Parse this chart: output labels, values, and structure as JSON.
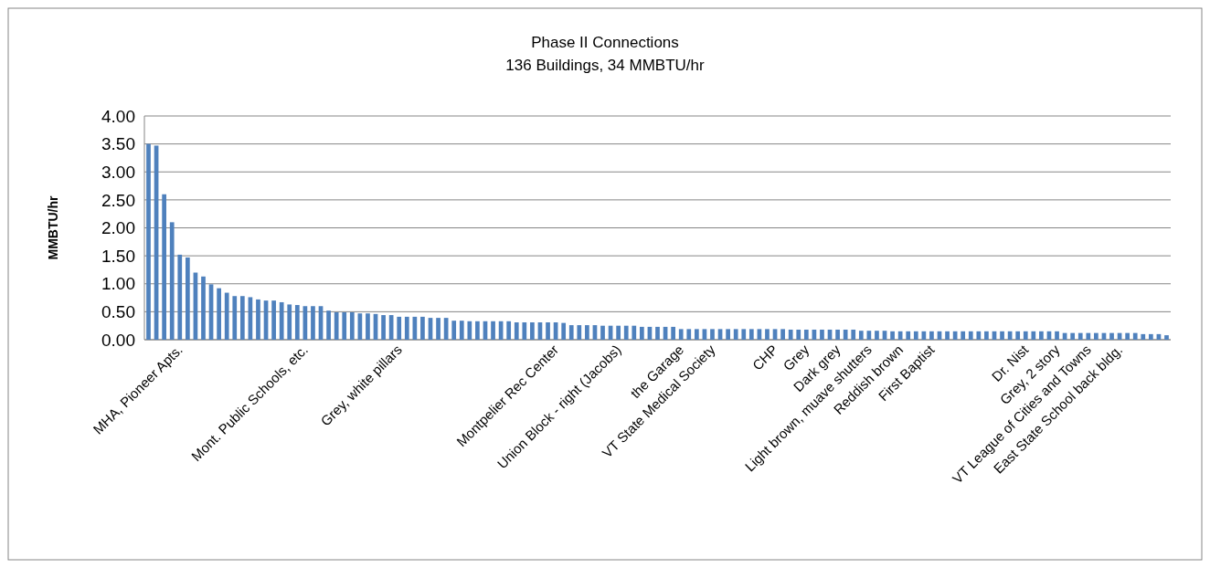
{
  "chart_data": {
    "type": "bar",
    "title": "Phase II Connections\n136 Buildings, 34 MMBTU/hr",
    "ylabel": "MMBTU/hr",
    "categories": [
      null,
      null,
      null,
      null,
      "MHA, Pioneer Apts.",
      null,
      null,
      null,
      null,
      null,
      null,
      null,
      null,
      null,
      null,
      null,
      null,
      null,
      null,
      null,
      "Mont. Public Schools, etc.",
      null,
      null,
      null,
      null,
      null,
      null,
      null,
      null,
      null,
      null,
      null,
      "Grey, white pillars",
      null,
      null,
      null,
      null,
      null,
      null,
      null,
      null,
      null,
      null,
      null,
      null,
      null,
      null,
      null,
      null,
      null,
      null,
      null,
      "Montpelier Rec Center",
      null,
      null,
      null,
      null,
      null,
      null,
      null,
      "Union Block - right (Jacobs)",
      null,
      null,
      null,
      null,
      null,
      null,
      null,
      "the Garage",
      null,
      null,
      null,
      "VT State Medical Society",
      null,
      null,
      null,
      null,
      null,
      null,
      null,
      "CHP",
      null,
      null,
      null,
      "Grey",
      null,
      null,
      null,
      "Dark grey",
      null,
      null,
      null,
      "Light brown, muave shutters",
      null,
      null,
      null,
      "Reddish brown",
      null,
      null,
      null,
      "First Baptist",
      null,
      null,
      null,
      null,
      null,
      null,
      null,
      null,
      null,
      null,
      null,
      "Dr. Nist",
      null,
      null,
      null,
      "Grey, 2 story",
      null,
      null,
      null,
      "VT League of Cities and Towns",
      null,
      null,
      null,
      "East State School back bldg.",
      null,
      null,
      null,
      null,
      null,
      null
    ],
    "values": [
      3.5,
      3.47,
      2.6,
      2.1,
      1.52,
      1.47,
      1.2,
      1.13,
      0.99,
      0.92,
      0.84,
      0.78,
      0.78,
      0.76,
      0.72,
      0.7,
      0.7,
      0.67,
      0.63,
      0.62,
      0.6,
      0.6,
      0.6,
      0.52,
      0.49,
      0.49,
      0.49,
      0.47,
      0.47,
      0.46,
      0.44,
      0.44,
      0.41,
      0.41,
      0.41,
      0.41,
      0.39,
      0.39,
      0.39,
      0.34,
      0.34,
      0.33,
      0.33,
      0.33,
      0.33,
      0.33,
      0.33,
      0.31,
      0.31,
      0.31,
      0.31,
      0.31,
      0.31,
      0.3,
      0.26,
      0.26,
      0.26,
      0.26,
      0.25,
      0.25,
      0.25,
      0.25,
      0.25,
      0.23,
      0.23,
      0.23,
      0.23,
      0.23,
      0.19,
      0.19,
      0.19,
      0.19,
      0.19,
      0.19,
      0.19,
      0.19,
      0.19,
      0.19,
      0.19,
      0.19,
      0.19,
      0.19,
      0.18,
      0.18,
      0.18,
      0.18,
      0.18,
      0.18,
      0.18,
      0.18,
      0.18,
      0.16,
      0.16,
      0.16,
      0.16,
      0.15,
      0.15,
      0.15,
      0.15,
      0.15,
      0.15,
      0.15,
      0.15,
      0.15,
      0.15,
      0.15,
      0.15,
      0.15,
      0.15,
      0.15,
      0.15,
      0.15,
      0.15,
      0.15,
      0.15,
      0.15,
      0.15,
      0.12,
      0.12,
      0.12,
      0.12,
      0.12,
      0.12,
      0.12,
      0.12,
      0.12,
      0.12,
      0.1,
      0.1,
      0.1,
      0.08
    ],
    "color": "#4f81bd",
    "ylim": [
      0,
      4
    ],
    "yticks": [
      {
        "value": 0,
        "label": "0.00"
      },
      {
        "value": 0.5,
        "label": "0.50"
      },
      {
        "value": 1,
        "label": "1.00"
      },
      {
        "value": 1.5,
        "label": "1.50"
      },
      {
        "value": 2,
        "label": "2.00"
      },
      {
        "value": 2.5,
        "label": "2.50"
      },
      {
        "value": 3,
        "label": "3.00"
      },
      {
        "value": 3.5,
        "label": "3.50"
      },
      {
        "value": 4,
        "label": "4.00"
      }
    ],
    "grid": "y"
  }
}
